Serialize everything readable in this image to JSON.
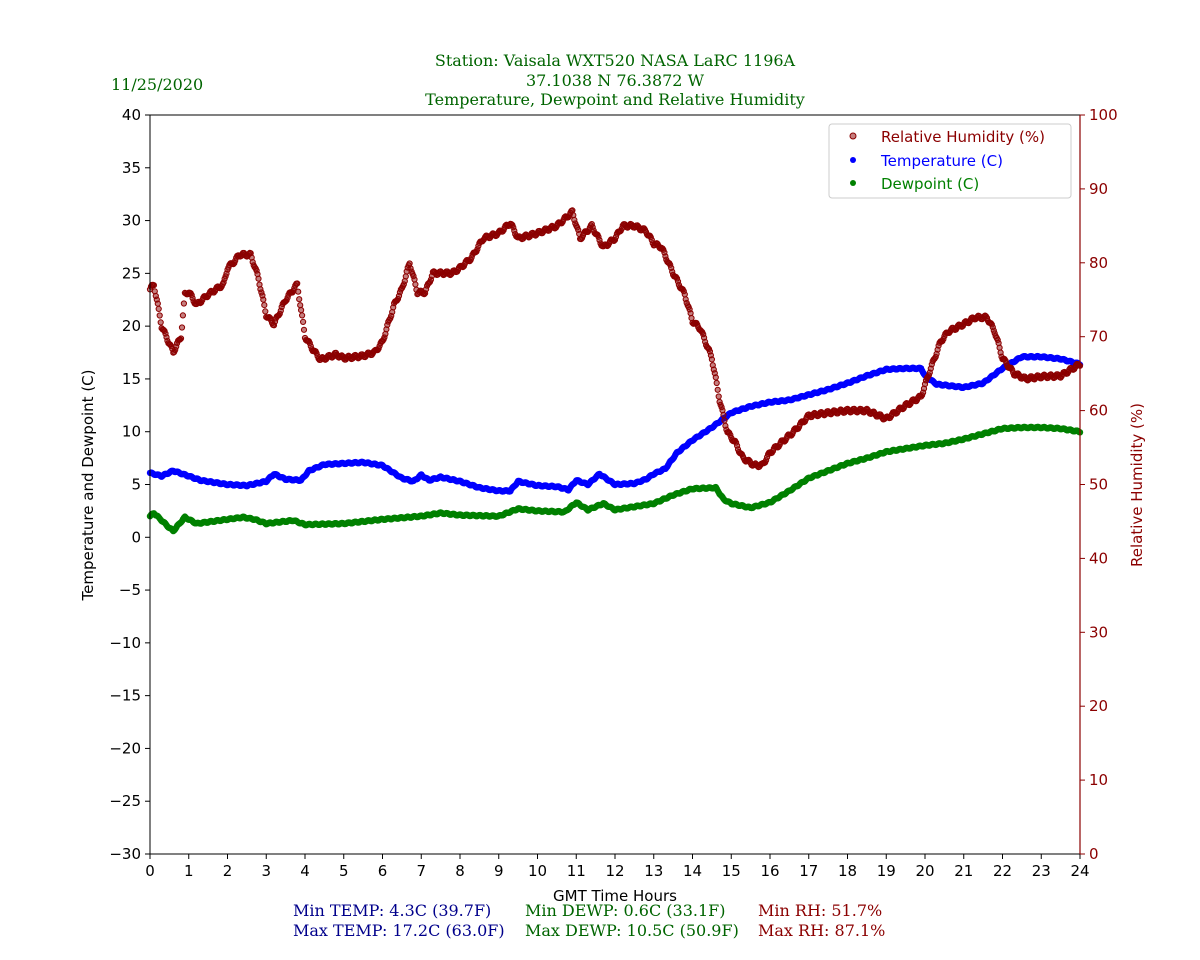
{
  "chart_data": {
    "type": "scatter",
    "date": "11/25/2020",
    "title_lines": [
      "Station:  Vaisala WXT520  NASA LaRC 1196A",
      "37.1038 N 76.3872 W",
      "Temperature, Dewpoint and Relative Humidity"
    ],
    "xlabel": "GMT Time Hours",
    "ylabel": "Temperature and Dewpoint (C)",
    "y2label": "Relative Humidity (%)",
    "xlim": [
      0,
      24
    ],
    "ylim": [
      -30,
      40
    ],
    "y2lim": [
      0,
      100
    ],
    "xticks": [
      "0",
      "1",
      "2",
      "3",
      "4",
      "5",
      "6",
      "7",
      "8",
      "9",
      "10",
      "11",
      "12",
      "13",
      "14",
      "15",
      "16",
      "17",
      "18",
      "19",
      "20",
      "21",
      "22",
      "23",
      "24"
    ],
    "yticks": [
      "40",
      "35",
      "30",
      "25",
      "20",
      "15",
      "10",
      "5",
      "0",
      "−5",
      "−10",
      "−15",
      "−20",
      "−25",
      "−30"
    ],
    "y2ticks": [
      "100",
      "90",
      "80",
      "70",
      "60",
      "50",
      "40",
      "30",
      "20",
      "10",
      "0"
    ],
    "legend_position": "top-right",
    "colors": {
      "title": "#006400",
      "rh": "#8b0000",
      "temp": "#0000ff",
      "dewp": "#008000",
      "temp_stats": "#00008b",
      "rh_axis": "#8b0000"
    },
    "series": [
      {
        "name": "Relative Humidity (%)",
        "axis": "right",
        "x": [
          0,
          0.1,
          0.3,
          0.6,
          0.8,
          0.9,
          1,
          1.2,
          1.5,
          1.9,
          2,
          2.2,
          2.3,
          2.6,
          2.8,
          3,
          3.2,
          3.5,
          3.8,
          4,
          4.2,
          4.4,
          4.8,
          5,
          5.5,
          5.8,
          6,
          6.3,
          6.5,
          6.7,
          6.9,
          7.1,
          7.3,
          7.8,
          8,
          8.3,
          8.6,
          9,
          9.3,
          9.5,
          10,
          10.5,
          10.9,
          11.1,
          11.4,
          11.7,
          12,
          12.2,
          12.5,
          12.8,
          13,
          13.2,
          13.5,
          13.8,
          14,
          14.2,
          14.5,
          14.7,
          14.9,
          15.1,
          15.3,
          15.6,
          15.8,
          16,
          16.3,
          16.6,
          17,
          17.5,
          18,
          18.5,
          19,
          19.5,
          19.9,
          20.1,
          20.4,
          20.6,
          21,
          21.3,
          21.6,
          21.8,
          22,
          22.3,
          22.6,
          23,
          23.5,
          24
        ],
        "y": [
          76.4,
          77.1,
          71.4,
          67.9,
          70,
          75.7,
          76.1,
          74.3,
          75.7,
          77.1,
          79.3,
          80.3,
          81.1,
          81.1,
          77.9,
          72.9,
          71.7,
          75,
          77.1,
          70,
          68.3,
          66.9,
          67.6,
          67.1,
          67.4,
          67.9,
          69.3,
          74.3,
          76.4,
          80,
          76,
          76,
          78.6,
          78.6,
          79.3,
          80.7,
          83.3,
          84,
          85.4,
          83.3,
          84,
          85,
          86.9,
          83.3,
          85,
          82.1,
          83.3,
          85,
          85,
          84.3,
          82.6,
          82.1,
          78.6,
          75.7,
          72.1,
          71.1,
          67.1,
          61.4,
          57.1,
          55.7,
          53.6,
          52.6,
          52.6,
          54.3,
          55.7,
          57.1,
          59.3,
          59.7,
          60,
          60,
          58.9,
          60.7,
          61.9,
          65,
          69.3,
          70.7,
          71.7,
          72.6,
          72.6,
          70.7,
          67.1,
          65,
          64.3,
          64.6,
          64.7,
          66.3
        ]
      },
      {
        "name": "Temperature (C)",
        "axis": "left",
        "x": [
          0,
          0.3,
          0.6,
          1,
          1.3,
          2,
          2.5,
          3,
          3.2,
          3.5,
          3.9,
          4.1,
          4.5,
          5,
          5.5,
          6,
          6.5,
          6.8,
          7,
          7.2,
          7.5,
          8,
          8.5,
          9,
          9.3,
          9.5,
          10,
          10.5,
          10.8,
          11,
          11.3,
          11.6,
          12,
          12.5,
          12.8,
          13,
          13.3,
          13.6,
          14,
          14.5,
          15,
          15.5,
          16,
          16.5,
          17,
          17.5,
          18,
          18.5,
          19,
          19.5,
          19.9,
          20,
          20.3,
          21,
          21.5,
          22,
          22.5,
          23,
          23.5,
          24
        ],
        "y": [
          6.1,
          5.8,
          6.3,
          5.8,
          5.4,
          5.0,
          4.9,
          5.3,
          6.0,
          5.5,
          5.4,
          6.3,
          6.9,
          7.0,
          7.1,
          6.8,
          5.6,
          5.3,
          5.9,
          5.4,
          5.7,
          5.3,
          4.7,
          4.4,
          4.4,
          5.3,
          4.9,
          4.8,
          4.5,
          5.4,
          5.0,
          6.0,
          5.0,
          5.1,
          5.5,
          6.0,
          6.5,
          8.0,
          9.2,
          10.4,
          11.8,
          12.4,
          12.8,
          13.0,
          13.5,
          14.0,
          14.6,
          15.3,
          15.9,
          16.0,
          16.0,
          15.3,
          14.5,
          14.2,
          14.6,
          16.0,
          17.1,
          17.1,
          16.9,
          16.4
        ]
      },
      {
        "name": "Dewpoint (C)",
        "axis": "left",
        "x": [
          0,
          0.1,
          0.5,
          0.6,
          0.9,
          1.2,
          2,
          2.4,
          2.7,
          3,
          3.7,
          4,
          5,
          6,
          7,
          7.5,
          8,
          9,
          9.5,
          10,
          10.7,
          11,
          11.3,
          11.7,
          12,
          12.5,
          13,
          13.5,
          14,
          14.6,
          14.8,
          15,
          15.5,
          16,
          16.5,
          17,
          17.5,
          18,
          18.5,
          19,
          19.5,
          20,
          20.5,
          21,
          21.5,
          22,
          22.5,
          23,
          23.5,
          24
        ],
        "y": [
          2.0,
          2.3,
          0.9,
          0.6,
          1.9,
          1.3,
          1.7,
          1.9,
          1.7,
          1.3,
          1.6,
          1.2,
          1.3,
          1.7,
          2.0,
          2.3,
          2.1,
          2.0,
          2.7,
          2.5,
          2.4,
          3.3,
          2.6,
          3.2,
          2.6,
          2.9,
          3.2,
          4.0,
          4.6,
          4.7,
          3.6,
          3.2,
          2.8,
          3.3,
          4.4,
          5.6,
          6.3,
          7.0,
          7.5,
          8.1,
          8.4,
          8.7,
          8.9,
          9.3,
          9.8,
          10.3,
          10.4,
          10.4,
          10.3,
          10.0
        ]
      }
    ],
    "stats": {
      "min_temp": "Min TEMP: 4.3C (39.7F)",
      "max_temp": "Max TEMP: 17.2C (63.0F)",
      "min_dewp": "Min DEWP: 0.6C (33.1F)",
      "max_dewp": "Max DEWP: 10.5C (50.9F)",
      "min_rh": "Min RH: 51.7%",
      "max_rh": "Max RH: 87.1%"
    }
  }
}
